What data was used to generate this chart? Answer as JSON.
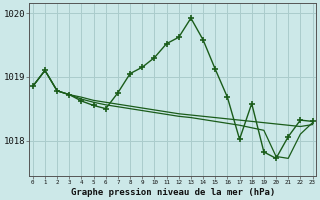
{
  "background_color": "#cce8e8",
  "plot_bg_color": "#cce8e8",
  "grid_color": "#aacccc",
  "line_color": "#1a5c1a",
  "xlabel": "Graphe pression niveau de la mer (hPa)",
  "ylim_min": 1017.45,
  "ylim_max": 1020.15,
  "yticks": [
    1018,
    1019,
    1020
  ],
  "hours": [
    0,
    1,
    2,
    3,
    4,
    5,
    6,
    7,
    8,
    9,
    10,
    11,
    12,
    13,
    14,
    15,
    16,
    17,
    18,
    19,
    20,
    21,
    22,
    23
  ],
  "series1": [
    1018.85,
    1019.1,
    1018.78,
    1018.72,
    1018.68,
    1018.63,
    1018.6,
    1018.57,
    1018.54,
    1018.51,
    1018.48,
    1018.45,
    1018.42,
    1018.4,
    1018.38,
    1018.36,
    1018.34,
    1018.32,
    1018.3,
    1018.28,
    1018.26,
    1018.24,
    1018.22,
    1018.25
  ],
  "series2": [
    1018.85,
    1019.1,
    1018.78,
    1018.72,
    1018.65,
    1018.6,
    1018.56,
    1018.53,
    1018.5,
    1018.47,
    1018.44,
    1018.41,
    1018.38,
    1018.36,
    1018.33,
    1018.3,
    1018.27,
    1018.24,
    1018.2,
    1018.16,
    1017.75,
    1017.72,
    1018.1,
    1018.28
  ],
  "series3": [
    1018.85,
    1019.1,
    1018.78,
    1018.72,
    1018.62,
    1018.55,
    1018.5,
    1018.75,
    1019.05,
    1019.15,
    1019.3,
    1019.52,
    1019.62,
    1019.92,
    1019.58,
    1019.12,
    1018.68,
    1018.02,
    1018.58,
    1017.82,
    1017.72,
    1018.06,
    1018.32,
    1018.3
  ]
}
